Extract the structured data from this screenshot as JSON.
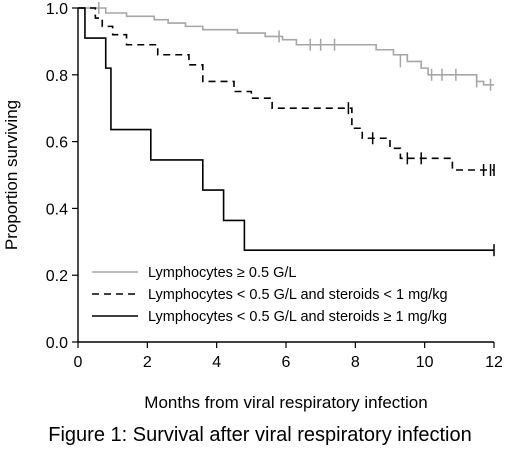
{
  "caption": "Figure 1: Survival after viral respiratory infection",
  "chart_data": {
    "type": "line",
    "subtype": "kaplan-meier step",
    "xlabel": "Months from viral respiratory infection",
    "ylabel": "Proportion surviving",
    "xlim": [
      0,
      12
    ],
    "ylim": [
      0,
      1
    ],
    "xticks": [
      0,
      2,
      4,
      6,
      8,
      10,
      12
    ],
    "yticks": [
      0.0,
      0.2,
      0.4,
      0.6,
      0.8,
      1.0
    ],
    "xtick_labels": [
      "0",
      "2",
      "4",
      "6",
      "8",
      "10",
      "12"
    ],
    "ytick_labels": [
      "0.0",
      "0.2",
      "0.4",
      "0.6",
      "0.8",
      "1.0"
    ],
    "grid": false,
    "legend_position": "bottom-left",
    "series": [
      {
        "name": "Lymphocytes ≥ 0.5 G/L",
        "color": "#a6a6a6",
        "dash": "solid",
        "steps": [
          [
            0,
            1.0
          ],
          [
            0.8,
            0.985
          ],
          [
            1.4,
            0.975
          ],
          [
            2.2,
            0.965
          ],
          [
            2.6,
            0.955
          ],
          [
            3.1,
            0.945
          ],
          [
            3.6,
            0.935
          ],
          [
            4.6,
            0.925
          ],
          [
            5.4,
            0.915
          ],
          [
            5.9,
            0.905
          ],
          [
            6.3,
            0.89
          ],
          [
            8.6,
            0.875
          ],
          [
            9.1,
            0.86
          ],
          [
            9.5,
            0.84
          ],
          [
            9.9,
            0.82
          ],
          [
            10.1,
            0.8
          ],
          [
            11.5,
            0.78
          ],
          [
            11.7,
            0.77
          ],
          [
            12,
            0.77
          ]
        ],
        "censored": [
          [
            0.6,
            1.0
          ],
          [
            5.8,
            0.915
          ],
          [
            6.7,
            0.89
          ],
          [
            7.0,
            0.89
          ],
          [
            7.4,
            0.89
          ],
          [
            9.3,
            0.84
          ],
          [
            10.2,
            0.8
          ],
          [
            10.5,
            0.8
          ],
          [
            10.9,
            0.8
          ],
          [
            11.5,
            0.78
          ],
          [
            11.9,
            0.77
          ]
        ]
      },
      {
        "name": "Lymphocytes < 0.5 G/L and steroids < 1 mg/kg",
        "color": "#000000",
        "dash": "dashed",
        "steps": [
          [
            0,
            1.0
          ],
          [
            0.5,
            0.97
          ],
          [
            0.7,
            0.945
          ],
          [
            1.0,
            0.92
          ],
          [
            1.4,
            0.89
          ],
          [
            2.3,
            0.86
          ],
          [
            3.2,
            0.83
          ],
          [
            3.6,
            0.78
          ],
          [
            4.5,
            0.75
          ],
          [
            5.0,
            0.73
          ],
          [
            5.6,
            0.7
          ],
          [
            7.9,
            0.64
          ],
          [
            8.2,
            0.61
          ],
          [
            9.0,
            0.58
          ],
          [
            9.3,
            0.55
          ],
          [
            10.8,
            0.515
          ],
          [
            12,
            0.515
          ]
        ],
        "censored": [
          [
            7.8,
            0.7
          ],
          [
            8.5,
            0.61
          ],
          [
            9.5,
            0.55
          ],
          [
            9.9,
            0.55
          ],
          [
            11.7,
            0.515
          ],
          [
            11.9,
            0.515
          ],
          [
            12.0,
            0.515
          ]
        ]
      },
      {
        "name": "Lymphocytes < 0.5 G/L and steroids ≥ 1 mg/kg",
        "color": "#000000",
        "dash": "solid",
        "steps": [
          [
            0,
            1.0
          ],
          [
            0.2,
            0.91
          ],
          [
            0.8,
            0.82
          ],
          [
            0.95,
            0.636
          ],
          [
            2.1,
            0.545
          ],
          [
            3.6,
            0.455
          ],
          [
            4.2,
            0.364
          ],
          [
            4.8,
            0.275
          ],
          [
            12,
            0.275
          ]
        ],
        "censored": [
          [
            12.0,
            0.275
          ]
        ]
      }
    ]
  }
}
